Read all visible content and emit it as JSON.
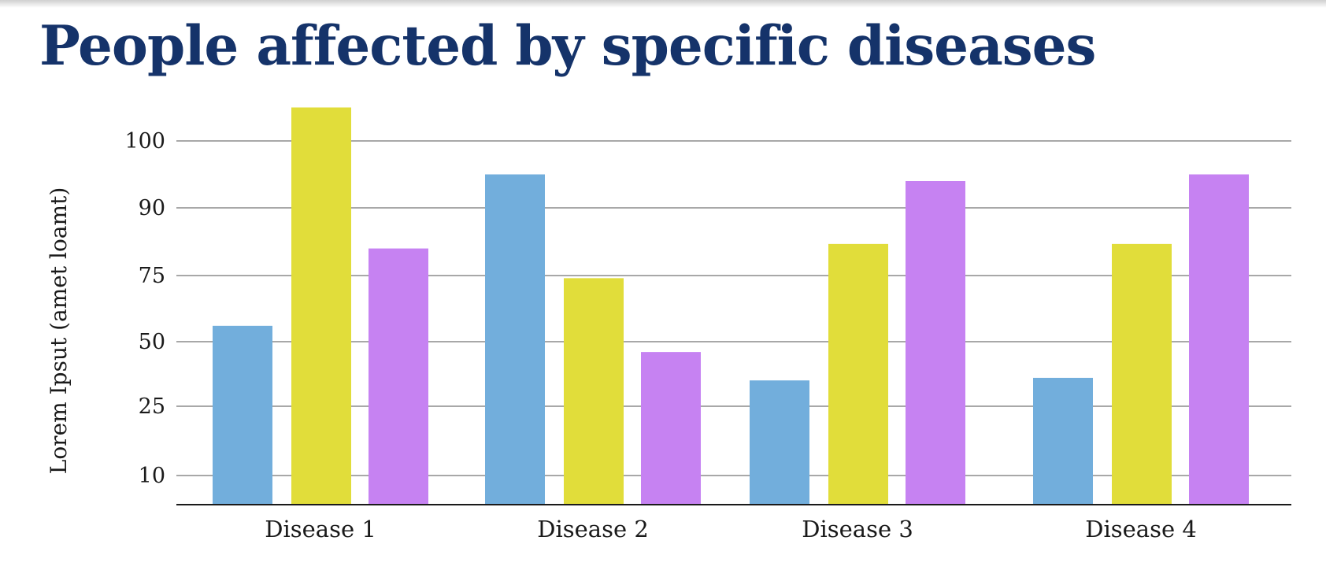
{
  "chart_data": {
    "type": "bar",
    "title": "People affected by specific diseases",
    "xlabel": "",
    "ylabel": "Lorem Ipsut (amet loamt)",
    "categories": [
      "Disease 1",
      "Disease 2",
      "Disease 3",
      "Disease 4"
    ],
    "series": [
      {
        "color": "#72aedc",
        "values": [
          56,
          95,
          35,
          36
        ]
      },
      {
        "color": "#e1dd3a",
        "values": [
          105,
          74,
          82,
          82
        ]
      },
      {
        "color": "#c682f2",
        "values": [
          81,
          46,
          94,
          95
        ]
      }
    ],
    "yticks": [
      {
        "label": "10",
        "value": 10
      },
      {
        "label": "25",
        "value": 25
      },
      {
        "label": "50",
        "value": 50
      },
      {
        "label": "75",
        "value": 75
      },
      {
        "label": "90",
        "value": 90
      },
      {
        "label": "100",
        "value": 100
      }
    ],
    "grid": true,
    "legend": "none"
  }
}
